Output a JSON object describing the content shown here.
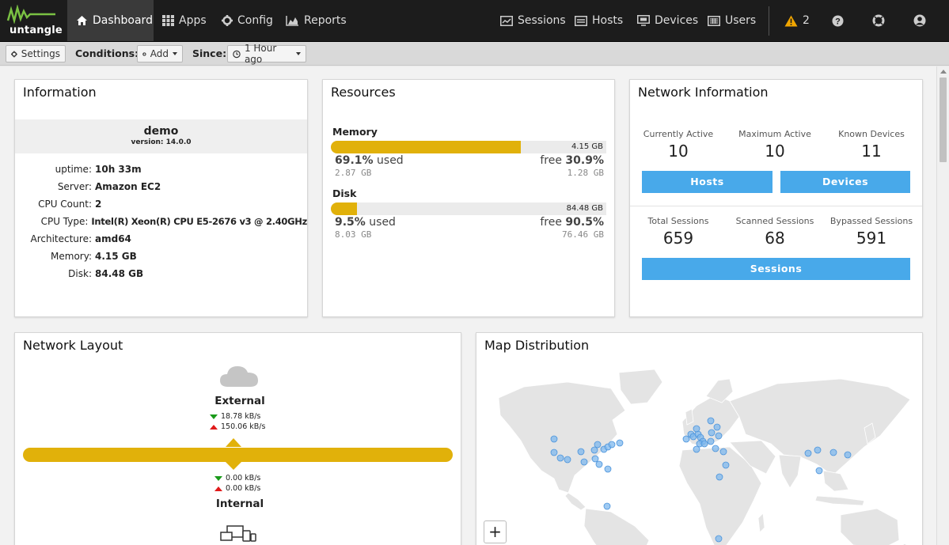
{
  "colors": {
    "accent": "#48a9ea",
    "bar": "#e1b10a",
    "nav_bg": "#1c1c1c",
    "warning": "#f0a500"
  },
  "brand": {
    "name": "untangle"
  },
  "nav": {
    "left": [
      {
        "label": "Dashboard",
        "icon": "home-icon",
        "active": true
      },
      {
        "label": "Apps",
        "icon": "grid-icon"
      },
      {
        "label": "Config",
        "icon": "gear-icon"
      },
      {
        "label": "Reports",
        "icon": "area-chart-icon"
      }
    ],
    "right": [
      {
        "label": "Sessions",
        "icon": "sessions-icon"
      },
      {
        "label": "Hosts",
        "icon": "hosts-icon"
      },
      {
        "label": "Devices",
        "icon": "devices-icon"
      },
      {
        "label": "Users",
        "icon": "users-icon"
      }
    ],
    "alerts_count": "2"
  },
  "toolbar": {
    "settings_label": "Settings",
    "conditions_label": "Conditions:",
    "add_label": "Add",
    "since_label": "Since:",
    "since_value": "1 Hour ago"
  },
  "information": {
    "title": "Information",
    "hostname": "demo",
    "version": "version: 14.0.0",
    "rows": [
      {
        "key": "uptime:",
        "value": "10h 33m"
      },
      {
        "key": "Server:",
        "value": "Amazon EC2"
      },
      {
        "key": "CPU Count:",
        "value": "2"
      },
      {
        "key": "CPU Type:",
        "value": "Intel(R) Xeon(R) CPU E5-2676 v3 @ 2.40GHz"
      },
      {
        "key": "Architecture:",
        "value": "amd64"
      },
      {
        "key": "Memory:",
        "value": "4.15 GB"
      },
      {
        "key": "Disk:",
        "value": "84.48 GB"
      }
    ]
  },
  "resources": {
    "title": "Resources",
    "memory": {
      "label": "Memory",
      "total": "4.15 GB",
      "used_fraction": 0.691,
      "used_pct": "69.1%",
      "used_word": "used",
      "free_word": "free",
      "free_pct": "30.9%",
      "used_size": "2.87 GB",
      "free_size": "1.28 GB"
    },
    "disk": {
      "label": "Disk",
      "total": "84.48 GB",
      "used_fraction": 0.095,
      "used_pct": "9.5%",
      "used_word": "used",
      "free_word": "free",
      "free_pct": "90.5%",
      "used_size": "8.03 GB",
      "free_size": "76.46 GB"
    }
  },
  "network_info": {
    "title": "Network Information",
    "hosts_stats": [
      {
        "label": "Currently Active",
        "value": "10"
      },
      {
        "label": "Maximum Active",
        "value": "10"
      },
      {
        "label": "Known Devices",
        "value": "11"
      }
    ],
    "hosts_button": "Hosts",
    "devices_button": "Devices",
    "session_stats": [
      {
        "label": "Total Sessions",
        "value": "659"
      },
      {
        "label": "Scanned Sessions",
        "value": "68"
      },
      {
        "label": "Bypassed Sessions",
        "value": "591"
      }
    ],
    "sessions_button": "Sessions"
  },
  "network_layout": {
    "title": "Network Layout",
    "external_label": "External",
    "external_down": "18.78 kB/s",
    "external_up": "150.06 kB/s",
    "internal_down": "0.00 kB/s",
    "internal_up": "0.00 kB/s",
    "internal_label": "Internal"
  },
  "map": {
    "title": "Map Distribution",
    "zoom_in_label": "+"
  }
}
